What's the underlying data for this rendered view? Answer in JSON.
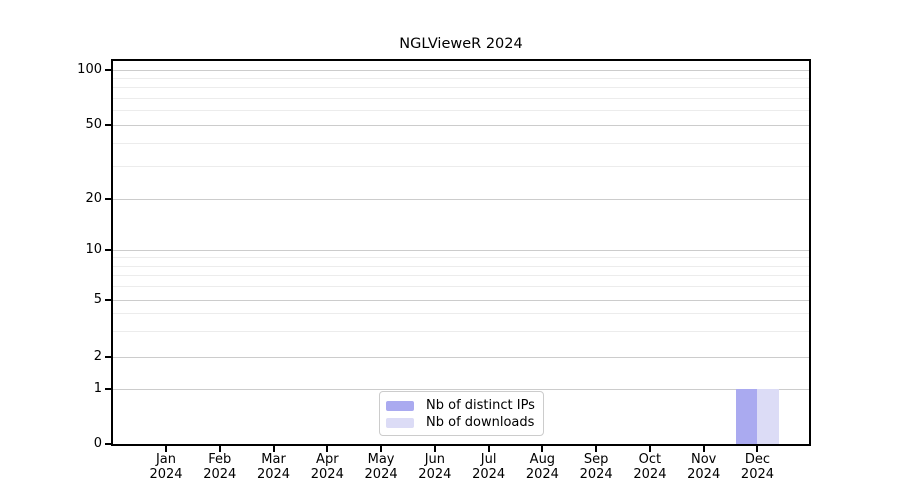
{
  "chart_data": {
    "type": "bar",
    "title": "NGLVieweR 2024",
    "categories": [
      {
        "month": "Jan",
        "year": "2024"
      },
      {
        "month": "Feb",
        "year": "2024"
      },
      {
        "month": "Mar",
        "year": "2024"
      },
      {
        "month": "Apr",
        "year": "2024"
      },
      {
        "month": "May",
        "year": "2024"
      },
      {
        "month": "Jun",
        "year": "2024"
      },
      {
        "month": "Jul",
        "year": "2024"
      },
      {
        "month": "Aug",
        "year": "2024"
      },
      {
        "month": "Sep",
        "year": "2024"
      },
      {
        "month": "Oct",
        "year": "2024"
      },
      {
        "month": "Nov",
        "year": "2024"
      },
      {
        "month": "Dec",
        "year": "2024"
      }
    ],
    "series": [
      {
        "name": "Nb of distinct IPs",
        "color": "#aaaaf0",
        "values": [
          0,
          0,
          0,
          0,
          0,
          0,
          0,
          0,
          0,
          0,
          0,
          1
        ]
      },
      {
        "name": "Nb of downloads",
        "color": "#dcdcf6",
        "values": [
          0,
          0,
          0,
          0,
          0,
          0,
          0,
          0,
          0,
          0,
          0,
          1
        ]
      }
    ],
    "xlabel": "",
    "ylabel": "",
    "y_axis": {
      "major_ticks": [
        0,
        1,
        2,
        5,
        10,
        20,
        50,
        100
      ],
      "minor_gridlines": [
        3,
        4,
        6,
        7,
        8,
        9,
        30,
        40,
        60,
        70,
        80,
        90
      ],
      "scale": "log above 1, linear segment from 0 to 1",
      "range": [
        0,
        110
      ]
    },
    "grid": true,
    "legend_position": "lower center",
    "colors": {
      "axis": "#000000",
      "major_grid": "#cccccc",
      "minor_grid": "#ececec",
      "background": "#ffffff",
      "legend_border": "#cccccc",
      "text": "#000000"
    }
  }
}
